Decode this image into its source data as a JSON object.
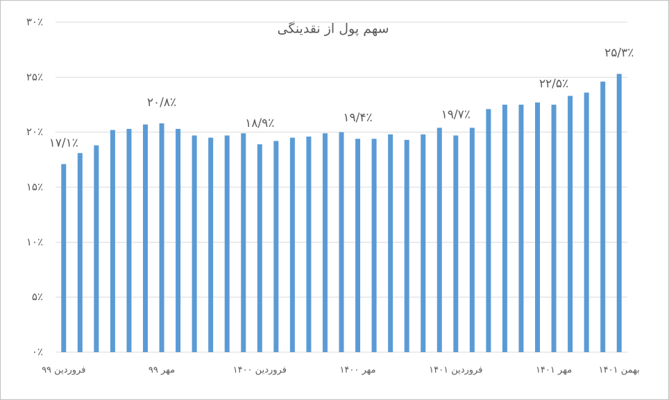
{
  "chart_data": {
    "type": "bar",
    "title": "سهم پول از نقدینگی",
    "categories": [
      "فروردین ۹۹",
      null,
      null,
      null,
      null,
      null,
      "مهر ۹۹",
      null,
      null,
      null,
      null,
      null,
      "فروردین ۱۴۰۰",
      null,
      null,
      null,
      null,
      null,
      "مهر ۱۴۰۰",
      null,
      null,
      null,
      null,
      null,
      "فروردین ۱۴۰۱",
      null,
      null,
      null,
      null,
      null,
      "مهر ۱۴۰۱",
      null,
      null,
      null,
      "بهمن ۱۴۰۱"
    ],
    "values": [
      17.1,
      18.1,
      18.8,
      20.2,
      20.3,
      20.7,
      20.8,
      20.3,
      19.7,
      19.5,
      19.7,
      19.9,
      18.9,
      19.2,
      19.5,
      19.6,
      19.9,
      20.0,
      19.4,
      19.4,
      19.8,
      19.3,
      19.8,
      20.4,
      19.7,
      20.4,
      22.1,
      22.5,
      22.5,
      22.7,
      22.5,
      23.3,
      23.6,
      24.6,
      25.3
    ],
    "value_labels": [
      "۱۷/۱٪",
      null,
      null,
      null,
      null,
      null,
      "۲۰/۸٪",
      null,
      null,
      null,
      null,
      null,
      "۱۸/۹٪",
      null,
      null,
      null,
      null,
      null,
      "۱۹/۴٪",
      null,
      null,
      null,
      null,
      null,
      "۱۹/۷٪",
      null,
      null,
      null,
      null,
      null,
      "۲۲/۵٪",
      null,
      null,
      null,
      "۲۵/۳٪"
    ],
    "color": "#5b9bd5",
    "ylim": [
      0,
      30
    ],
    "yticks": [
      {
        "value": 0,
        "label": "۰٪"
      },
      {
        "value": 5,
        "label": "۵٪"
      },
      {
        "value": 10,
        "label": "۱۰٪"
      },
      {
        "value": 15,
        "label": "۱۵٪"
      },
      {
        "value": 20,
        "label": "۲۰٪"
      },
      {
        "value": 25,
        "label": "۲۵٪"
      },
      {
        "value": 30,
        "label": "۳۰٪"
      }
    ],
    "grid": true
  }
}
